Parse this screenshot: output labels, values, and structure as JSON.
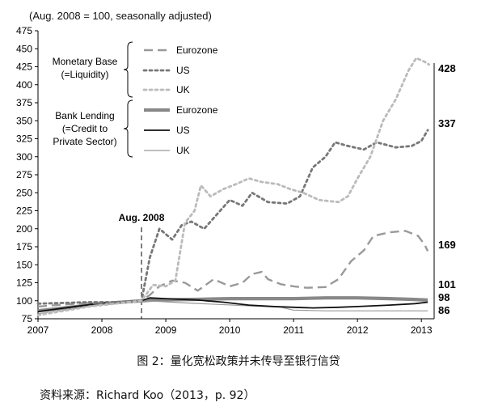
{
  "chart_data": {
    "type": "line",
    "note": "(Aug. 2008 = 100, seasonally adjusted)",
    "ylim": [
      75,
      475
    ],
    "yticks": [
      75,
      100,
      125,
      150,
      175,
      200,
      225,
      250,
      275,
      300,
      325,
      350,
      375,
      400,
      425,
      450,
      475
    ],
    "xlim": [
      2007,
      2013.2
    ],
    "xticks": [
      2007,
      2008,
      2009,
      2010,
      2011,
      2012,
      2013
    ],
    "grid": false,
    "annotation": {
      "label": "Aug. 2008",
      "x": 2008.62
    },
    "legend": {
      "placement": "top-left",
      "groups": [
        {
          "label_lines": [
            "Monetary Base",
            "(=Liquidity)"
          ],
          "entries": [
            "Eurozone",
            "US",
            "UK"
          ]
        },
        {
          "label_lines": [
            "Bank Lending",
            "(=Credit to",
            "Private Sector)"
          ],
          "entries": [
            "Eurozone",
            "US",
            "UK"
          ]
        }
      ]
    },
    "end_labels": [
      "428",
      "337",
      "169",
      "101",
      "98",
      "86"
    ],
    "series": [
      {
        "name": "Eurozone",
        "group": "Monetary Base",
        "color": "#999999",
        "style": "dash",
        "points": [
          [
            2007,
            92
          ],
          [
            2007.3,
            94
          ],
          [
            2007.6,
            96
          ],
          [
            2007.9,
            97
          ],
          [
            2008.2,
            98
          ],
          [
            2008.5,
            99
          ],
          [
            2008.62,
            100
          ],
          [
            2008.75,
            108
          ],
          [
            2008.9,
            120
          ],
          [
            2009.1,
            128
          ],
          [
            2009.3,
            125
          ],
          [
            2009.5,
            114
          ],
          [
            2009.75,
            130
          ],
          [
            2010.0,
            120
          ],
          [
            2010.2,
            125
          ],
          [
            2010.35,
            137
          ],
          [
            2010.5,
            140
          ],
          [
            2010.6,
            130
          ],
          [
            2010.8,
            123
          ],
          [
            2011.0,
            120
          ],
          [
            2011.2,
            118
          ],
          [
            2011.5,
            119
          ],
          [
            2011.7,
            130
          ],
          [
            2011.9,
            155
          ],
          [
            2012.1,
            170
          ],
          [
            2012.25,
            190
          ],
          [
            2012.5,
            195
          ],
          [
            2012.75,
            197
          ],
          [
            2012.95,
            190
          ],
          [
            2013.05,
            178
          ],
          [
            2013.1,
            169
          ]
        ]
      },
      {
        "name": "US",
        "group": "Monetary Base",
        "color": "#777777",
        "style": "dot",
        "points": [
          [
            2007,
            96
          ],
          [
            2007.4,
            97
          ],
          [
            2007.8,
            98
          ],
          [
            2008.2,
            98
          ],
          [
            2008.62,
            100
          ],
          [
            2008.75,
            160
          ],
          [
            2008.9,
            200
          ],
          [
            2009.1,
            185
          ],
          [
            2009.25,
            205
          ],
          [
            2009.4,
            210
          ],
          [
            2009.6,
            200
          ],
          [
            2009.8,
            220
          ],
          [
            2010.0,
            240
          ],
          [
            2010.2,
            232
          ],
          [
            2010.35,
            250
          ],
          [
            2010.6,
            237
          ],
          [
            2010.9,
            235
          ],
          [
            2011.1,
            245
          ],
          [
            2011.3,
            285
          ],
          [
            2011.5,
            300
          ],
          [
            2011.65,
            320
          ],
          [
            2011.85,
            315
          ],
          [
            2012.1,
            310
          ],
          [
            2012.3,
            320
          ],
          [
            2012.6,
            313
          ],
          [
            2012.85,
            315
          ],
          [
            2013.0,
            322
          ],
          [
            2013.1,
            337
          ]
        ]
      },
      {
        "name": "UK",
        "group": "Monetary Base",
        "color": "#bbbbbb",
        "style": "dot",
        "points": [
          [
            2007,
            80
          ],
          [
            2007.4,
            86
          ],
          [
            2007.8,
            92
          ],
          [
            2008.2,
            96
          ],
          [
            2008.62,
            100
          ],
          [
            2008.8,
            122
          ],
          [
            2009.0,
            120
          ],
          [
            2009.15,
            128
          ],
          [
            2009.3,
            208
          ],
          [
            2009.45,
            225
          ],
          [
            2009.55,
            260
          ],
          [
            2009.7,
            245
          ],
          [
            2009.9,
            255
          ],
          [
            2010.1,
            262
          ],
          [
            2010.3,
            270
          ],
          [
            2010.5,
            265
          ],
          [
            2010.75,
            262
          ],
          [
            2010.95,
            255
          ],
          [
            2011.15,
            250
          ],
          [
            2011.4,
            240
          ],
          [
            2011.7,
            237
          ],
          [
            2011.85,
            245
          ],
          [
            2012.0,
            270
          ],
          [
            2012.2,
            300
          ],
          [
            2012.4,
            350
          ],
          [
            2012.6,
            380
          ],
          [
            2012.8,
            420
          ],
          [
            2012.92,
            437
          ],
          [
            2013.05,
            432
          ],
          [
            2013.12,
            428
          ]
        ]
      },
      {
        "name": "Eurozone",
        "group": "Bank Lending",
        "color": "#888888",
        "style": "thick",
        "points": [
          [
            2007,
            86
          ],
          [
            2007.5,
            91
          ],
          [
            2008.0,
            96
          ],
          [
            2008.62,
            100
          ],
          [
            2008.8,
            101
          ],
          [
            2009.5,
            102
          ],
          [
            2010.0,
            103
          ],
          [
            2010.5,
            103
          ],
          [
            2011.0,
            103
          ],
          [
            2011.5,
            104
          ],
          [
            2012.0,
            104
          ],
          [
            2012.5,
            103
          ],
          [
            2012.85,
            102
          ],
          [
            2013.1,
            101
          ]
        ]
      },
      {
        "name": "US",
        "group": "Bank Lending",
        "color": "#111111",
        "style": "solid",
        "points": [
          [
            2007,
            85
          ],
          [
            2007.5,
            91
          ],
          [
            2008.0,
            97
          ],
          [
            2008.62,
            100
          ],
          [
            2008.75,
            104
          ],
          [
            2009.0,
            103
          ],
          [
            2009.5,
            101
          ],
          [
            2009.9,
            98
          ],
          [
            2010.3,
            94
          ],
          [
            2010.7,
            92
          ],
          [
            2011.0,
            91
          ],
          [
            2011.3,
            90
          ],
          [
            2011.7,
            91
          ],
          [
            2012.0,
            92
          ],
          [
            2012.5,
            94
          ],
          [
            2012.9,
            96
          ],
          [
            2013.1,
            98
          ]
        ]
      },
      {
        "name": "UK",
        "group": "Bank Lending",
        "color": "#999999",
        "style": "thin",
        "points": [
          [
            2007,
            82
          ],
          [
            2007.5,
            88
          ],
          [
            2008.0,
            95
          ],
          [
            2008.62,
            100
          ],
          [
            2008.9,
            99
          ],
          [
            2009.3,
            97
          ],
          [
            2009.8,
            95
          ],
          [
            2010.3,
            93
          ],
          [
            2010.8,
            91
          ],
          [
            2011.0,
            87
          ],
          [
            2011.5,
            86
          ],
          [
            2012.0,
            86
          ],
          [
            2012.5,
            86
          ],
          [
            2012.9,
            86
          ],
          [
            2013.1,
            86
          ]
        ]
      }
    ]
  },
  "caption": "图 2：量化宽松政策并未传导至银行信贷",
  "source": "资料来源：Richard Koo（2013，p. 92）"
}
